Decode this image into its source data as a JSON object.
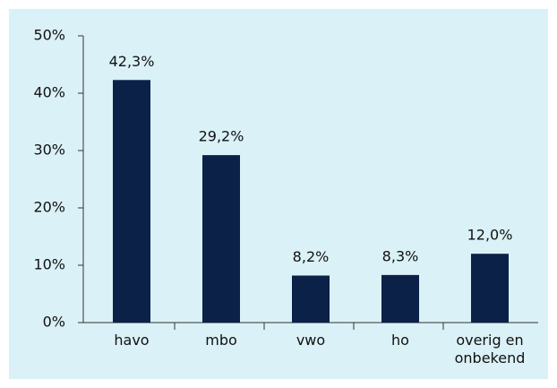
{
  "chart_data": {
    "type": "bar",
    "categories": [
      "havo",
      "mbo",
      "vwo",
      "ho",
      "overig en onbekend"
    ],
    "values": [
      42.3,
      29.2,
      8.2,
      8.3,
      12.0
    ],
    "value_labels": [
      "42,3%",
      "29,2%",
      "8,2%",
      "8,3%",
      "12,0%"
    ],
    "color": "#0c2148",
    "ylim": [
      0,
      50
    ],
    "yticks": [
      {
        "value": 0,
        "label": "0%"
      },
      {
        "value": 10,
        "label": "10%"
      },
      {
        "value": 20,
        "label": "20%"
      },
      {
        "value": 30,
        "label": "30%"
      },
      {
        "value": 40,
        "label": "40%"
      },
      {
        "value": 50,
        "label": "50%"
      }
    ],
    "grid": false
  }
}
